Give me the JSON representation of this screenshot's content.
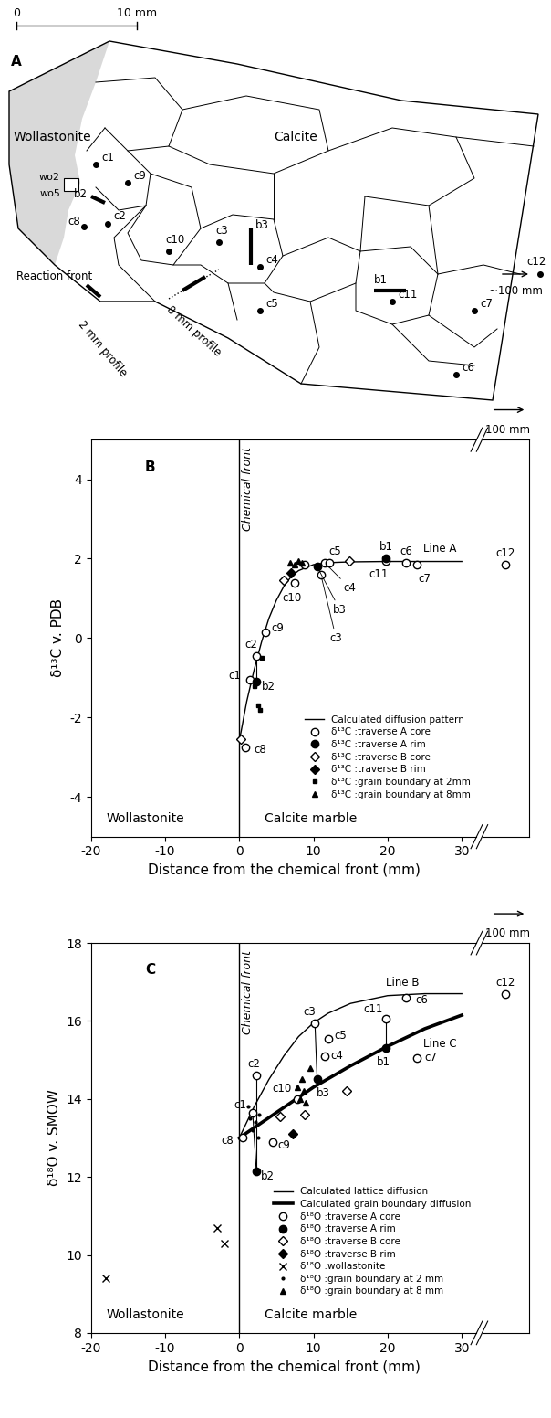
{
  "map": {
    "panel_label": "A",
    "scale_labels": [
      "0",
      "10 mm"
    ],
    "regions": [
      "Wollastonite",
      "Calcite"
    ],
    "samples": [
      "wo2",
      "wo5"
    ],
    "front_label": "Reaction front",
    "profiles": [
      "2 mm profile",
      "8 mm profile"
    ],
    "points": [
      "c1",
      "c9",
      "c2",
      "c8",
      "c10",
      "c3",
      "c4",
      "c5",
      "c11",
      "c7",
      "c6"
    ],
    "bars": [
      "b2",
      "b3",
      "b1"
    ],
    "far_point": {
      "label": "c12",
      "distance": "~100 mm"
    }
  },
  "chart_data": [
    {
      "type": "scatter",
      "panel_label": "B",
      "x_label": "Distance from the chemical front (mm)",
      "y_label": "δ¹³C v. PDB",
      "xlim": [
        -20,
        32
      ],
      "xticks": [
        -20,
        -10,
        0,
        10,
        20,
        30
      ],
      "ylim": [
        -5,
        5
      ],
      "yticks": [
        -4,
        -2,
        0,
        2,
        4
      ],
      "x2lim": [
        96,
        104
      ],
      "break_label": "100 mm",
      "front": {
        "x": 0,
        "label": "Chemical front"
      },
      "region_labels": [
        "Wollastonite",
        "Calcite marble"
      ],
      "legend": "lower right",
      "series": [
        {
          "name": "Calculated diffusion pattern",
          "type": "line",
          "line_style": "solid",
          "color": "black",
          "x": [
            0,
            1,
            2,
            3,
            4,
            5,
            6,
            7,
            8,
            10,
            12,
            15,
            20,
            25,
            30
          ],
          "y": [
            -2.6,
            -1.6,
            -0.8,
            -0.1,
            0.5,
            0.95,
            1.3,
            1.55,
            1.7,
            1.85,
            1.9,
            1.92,
            1.93,
            1.93,
            1.93
          ]
        },
        {
          "name": "δ¹³C :traverse A core",
          "type": "scatter",
          "marker": "open circle",
          "color": "black",
          "x": [
            0.8,
            1.5,
            2.3,
            3.5,
            7.5,
            8.8,
            11,
            11.5,
            12.2,
            19.8,
            22.5,
            24,
            100
          ],
          "y": [
            -2.75,
            -1.05,
            -0.45,
            0.15,
            1.4,
            1.85,
            1.6,
            1.9,
            1.9,
            1.95,
            1.9,
            1.85,
            1.85
          ]
        },
        {
          "name": "δ¹³C :traverse A rim",
          "type": "scatter",
          "marker": "filled circle",
          "color": "black",
          "x": [
            2.3,
            10.5,
            19.8
          ],
          "y": [
            -1.1,
            1.8,
            2.0
          ]
        },
        {
          "name": "δ¹³C :traverse B core",
          "type": "scatter",
          "marker": "open diamond",
          "color": "black",
          "x": [
            0.2,
            6,
            14.8
          ],
          "y": [
            -2.55,
            1.45,
            1.95
          ]
        },
        {
          "name": "δ¹³C :traverse B rim",
          "type": "scatter",
          "marker": "filled diamond",
          "color": "black",
          "x": [
            7
          ],
          "y": [
            1.65
          ]
        },
        {
          "name": "δ¹³C :grain boundary at 2mm",
          "type": "scatter",
          "marker": "square",
          "color": "black",
          "x": [
            2.1,
            2.5,
            2.8,
            3.0
          ],
          "y": [
            -1.2,
            -1.7,
            -1.8,
            -0.5
          ]
        },
        {
          "name": "δ¹³C :grain boundary at 8mm",
          "type": "scatter",
          "marker": "triangle",
          "color": "black",
          "x": [
            6.8,
            7.5,
            8.0,
            8.5
          ],
          "y": [
            1.9,
            1.85,
            1.95,
            1.9
          ]
        }
      ],
      "tie_lines": [
        [
          [
            1.5,
            -1.05
          ],
          [
            2.3,
            -1.1
          ]
        ],
        [
          [
            2.3,
            -0.45
          ],
          [
            2.3,
            -1.1
          ]
        ]
      ],
      "annotations": [
        {
          "text": "c8",
          "x": 0.8,
          "y": -2.75
        },
        {
          "text": "c1",
          "x": 1.5,
          "y": -1.05
        },
        {
          "text": "c2",
          "x": 2.3,
          "y": -0.45
        },
        {
          "text": "c9",
          "x": 3.5,
          "y": 0.15
        },
        {
          "text": "b2",
          "x": 2.3,
          "y": -1.1
        },
        {
          "text": "c10",
          "x": 7.5,
          "y": 1.4
        },
        {
          "text": "c3",
          "x": 11,
          "y": 1.6
        },
        {
          "text": "b3",
          "x": 10.5,
          "y": 1.8
        },
        {
          "text": "c4",
          "x": 11.5,
          "y": 1.9
        },
        {
          "text": "c5",
          "x": 12.2,
          "y": 1.9
        },
        {
          "text": "b1",
          "x": 19.8,
          "y": 2.0
        },
        {
          "text": "c11",
          "x": 19.8,
          "y": 1.95
        },
        {
          "text": "c6",
          "x": 22.5,
          "y": 1.9
        },
        {
          "text": "c7",
          "x": 24,
          "y": 1.85
        },
        {
          "text": "Line A",
          "x": 27,
          "y": 1.93
        },
        {
          "text": "c12",
          "x": 100,
          "y": 1.85
        }
      ]
    },
    {
      "type": "scatter",
      "panel_label": "C",
      "x_label": "Distance from the chemical front (mm)",
      "y_label": "δ¹⁸O v. SMOW",
      "xlim": [
        -20,
        32
      ],
      "xticks": [
        -20,
        -10,
        0,
        10,
        20,
        30
      ],
      "ylim": [
        8,
        18
      ],
      "yticks": [
        8,
        10,
        12,
        14,
        16,
        18
      ],
      "x2lim": [
        96,
        104
      ],
      "break_label": "100 mm",
      "front": {
        "x": 0,
        "label": "Chemical front"
      },
      "region_labels": [
        "Wollastonite",
        "Calcite marble"
      ],
      "legend": "lower right",
      "series": [
        {
          "name": "Calculated lattice diffusion",
          "type": "line",
          "line_style": "solid",
          "color": "black",
          "x": [
            0,
            2,
            4,
            6,
            8,
            10,
            12,
            15,
            20,
            25,
            30
          ],
          "y": [
            13.0,
            13.8,
            14.5,
            15.1,
            15.6,
            15.95,
            16.2,
            16.45,
            16.65,
            16.7,
            16.7
          ]
        },
        {
          "name": "Calculated grain boundary diffusion",
          "type": "line",
          "line_style": "thick",
          "color": "black",
          "x": [
            0,
            5,
            10,
            15,
            20,
            25,
            30
          ],
          "y": [
            13.0,
            13.65,
            14.3,
            14.85,
            15.35,
            15.8,
            16.15
          ]
        },
        {
          "name": "δ¹⁸O :traverse A core",
          "type": "scatter",
          "marker": "open circle",
          "color": "black",
          "x": [
            0.5,
            1.8,
            2.3,
            4.5,
            7.8,
            10.2,
            11.5,
            12,
            19.8,
            22.5,
            24,
            100
          ],
          "y": [
            13.0,
            13.65,
            14.6,
            12.9,
            14.0,
            15.95,
            15.1,
            15.55,
            16.05,
            16.6,
            15.05,
            16.7
          ]
        },
        {
          "name": "δ¹⁸O :traverse A rim",
          "type": "scatter",
          "marker": "filled circle",
          "color": "black",
          "x": [
            2.3,
            10.5,
            19.8
          ],
          "y": [
            12.15,
            14.5,
            15.3
          ]
        },
        {
          "name": "δ¹⁸O :traverse B core",
          "type": "scatter",
          "marker": "open diamond",
          "color": "black",
          "x": [
            5.5,
            8.8,
            14.5
          ],
          "y": [
            13.55,
            13.6,
            14.2
          ]
        },
        {
          "name": "δ¹⁸O :traverse B rim",
          "type": "scatter",
          "marker": "filled diamond",
          "color": "black",
          "x": [
            7.2
          ],
          "y": [
            13.1
          ]
        },
        {
          "name": "δ¹⁸O :wollastonite",
          "type": "scatter",
          "marker": "cross",
          "color": "black",
          "x": [
            -18,
            -3,
            -2
          ],
          "y": [
            9.4,
            10.7,
            10.3
          ]
        },
        {
          "name": "δ¹⁸O :grain boundary at 2 mm",
          "type": "scatter",
          "marker": "dot",
          "color": "black",
          "x": [
            1.2,
            1.5,
            1.8,
            2.2,
            2.5,
            2.7
          ],
          "y": [
            13.8,
            13.5,
            13.2,
            13.4,
            13.0,
            13.6
          ]
        },
        {
          "name": "δ¹⁸O :grain boundary at 8 mm",
          "type": "scatter",
          "marker": "triangle",
          "color": "black",
          "x": [
            7.8,
            8.2,
            8.5,
            8.7,
            9.0,
            9.5
          ],
          "y": [
            14.3,
            14.0,
            14.5,
            14.2,
            13.9,
            14.8
          ]
        }
      ],
      "tie_lines": [
        [
          [
            10.2,
            15.95
          ],
          [
            10.5,
            14.5
          ]
        ],
        [
          [
            19.8,
            16.05
          ],
          [
            19.8,
            15.3
          ]
        ],
        [
          [
            2.3,
            14.6
          ],
          [
            2.3,
            12.15
          ]
        ],
        [
          [
            1.8,
            13.65
          ],
          [
            2.3,
            12.15
          ]
        ]
      ],
      "annotations": [
        {
          "text": "c8",
          "x": 0.5,
          "y": 13.0
        },
        {
          "text": "c1",
          "x": 1.8,
          "y": 13.65
        },
        {
          "text": "c2",
          "x": 2.3,
          "y": 14.6
        },
        {
          "text": "c9",
          "x": 4.5,
          "y": 12.9
        },
        {
          "text": "b2",
          "x": 2.3,
          "y": 12.15
        },
        {
          "text": "c10",
          "x": 7.8,
          "y": 14.0
        },
        {
          "text": "c3",
          "x": 10.2,
          "y": 15.95
        },
        {
          "text": "c4",
          "x": 11.5,
          "y": 15.1
        },
        {
          "text": "c5",
          "x": 12,
          "y": 15.55
        },
        {
          "text": "b3",
          "x": 10.5,
          "y": 14.5
        },
        {
          "text": "c11",
          "x": 19.8,
          "y": 16.05
        },
        {
          "text": "b1",
          "x": 19.8,
          "y": 15.3
        },
        {
          "text": "c6",
          "x": 22.5,
          "y": 16.6
        },
        {
          "text": "c7",
          "x": 24,
          "y": 15.05
        },
        {
          "text": "Line B",
          "x": 22,
          "y": 16.65
        },
        {
          "text": "Line C",
          "x": 26,
          "y": 15.8
        },
        {
          "text": "c12",
          "x": 100,
          "y": 16.7
        }
      ]
    }
  ]
}
